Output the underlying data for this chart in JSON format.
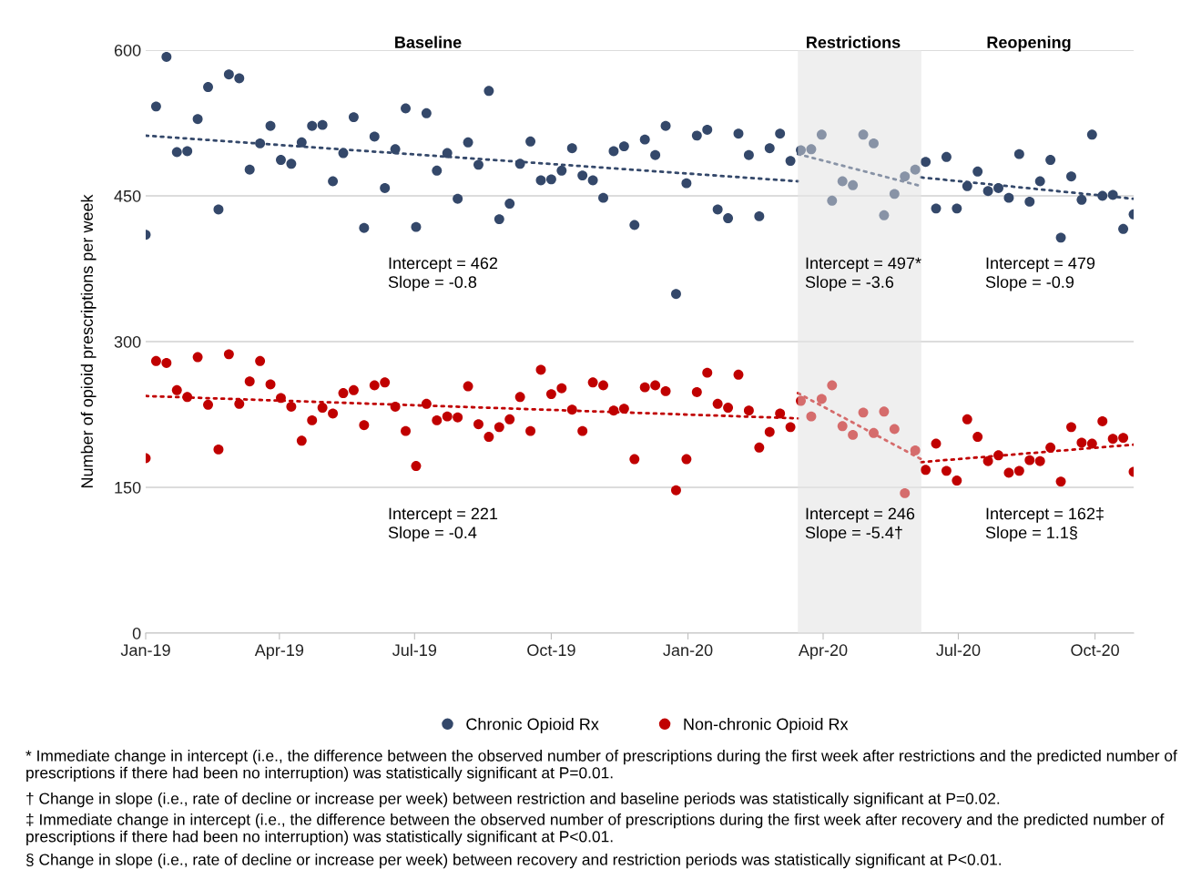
{
  "chart_data": {
    "type": "scatter",
    "ylabel": "Number of opioid prescriptions per week",
    "x": [
      "2019-01-01",
      "2019-01-08",
      "2019-01-15",
      "2019-01-22",
      "2019-01-29",
      "2019-02-05",
      "2019-02-12",
      "2019-02-19",
      "2019-02-26",
      "2019-03-05",
      "2019-03-12",
      "2019-03-19",
      "2019-03-26",
      "2019-04-02",
      "2019-04-09",
      "2019-04-16",
      "2019-04-23",
      "2019-04-30",
      "2019-05-07",
      "2019-05-14",
      "2019-05-21",
      "2019-05-28",
      "2019-06-04",
      "2019-06-11",
      "2019-06-18",
      "2019-06-25",
      "2019-07-02",
      "2019-07-09",
      "2019-07-16",
      "2019-07-23",
      "2019-07-30",
      "2019-08-06",
      "2019-08-13",
      "2019-08-20",
      "2019-08-27",
      "2019-09-03",
      "2019-09-10",
      "2019-09-17",
      "2019-09-24",
      "2019-10-01",
      "2019-10-08",
      "2019-10-15",
      "2019-10-22",
      "2019-10-29",
      "2019-11-05",
      "2019-11-12",
      "2019-11-19",
      "2019-11-26",
      "2019-12-03",
      "2019-12-10",
      "2019-12-17",
      "2019-12-24",
      "2019-12-31",
      "2020-01-07",
      "2020-01-14",
      "2020-01-21",
      "2020-01-28",
      "2020-02-04",
      "2020-02-11",
      "2020-02-18",
      "2020-02-25",
      "2020-03-03",
      "2020-03-10",
      "2020-03-17",
      "2020-03-24",
      "2020-03-31",
      "2020-04-07",
      "2020-04-14",
      "2020-04-21",
      "2020-04-28",
      "2020-05-05",
      "2020-05-12",
      "2020-05-19",
      "2020-05-26",
      "2020-06-02",
      "2020-06-09",
      "2020-06-16",
      "2020-06-23",
      "2020-06-30",
      "2020-07-07",
      "2020-07-14",
      "2020-07-21",
      "2020-07-28",
      "2020-08-04",
      "2020-08-11",
      "2020-08-18",
      "2020-08-25",
      "2020-09-01",
      "2020-09-08",
      "2020-09-15",
      "2020-09-22",
      "2020-09-29",
      "2020-10-06",
      "2020-10-13",
      "2020-10-20",
      "2020-10-27"
    ],
    "series": [
      {
        "name": "Chronic Opioid Rx",
        "color": "#34486a",
        "values": [
          410,
          542,
          593,
          495,
          496,
          529,
          562,
          436,
          575,
          571,
          477,
          504,
          522,
          487,
          483,
          505,
          522,
          523,
          465,
          494,
          531,
          417,
          511,
          458,
          498,
          540,
          418,
          535,
          476,
          494,
          447,
          505,
          482,
          558,
          426,
          442,
          483,
          506,
          466,
          467,
          476,
          499,
          471,
          466,
          448,
          496,
          501,
          420,
          508,
          492,
          522,
          349,
          463,
          512,
          518,
          436,
          427,
          514,
          492,
          429,
          499,
          514,
          486,
          497,
          498,
          513,
          445,
          465,
          461,
          513,
          504,
          430,
          452,
          470,
          477,
          485,
          437,
          490,
          437,
          460,
          475,
          455,
          458,
          448,
          493,
          444,
          465,
          487,
          407,
          470,
          446,
          513,
          450,
          451,
          416,
          431
        ]
      },
      {
        "name": "Non-chronic Opioid Rx",
        "color": "#c00000",
        "values": [
          180,
          280,
          278,
          250,
          243,
          284,
          235,
          189,
          287,
          236,
          259,
          280,
          256,
          242,
          233,
          198,
          219,
          232,
          226,
          247,
          250,
          214,
          255,
          258,
          233,
          208,
          172,
          236,
          219,
          223,
          222,
          254,
          215,
          202,
          212,
          220,
          243,
          208,
          271,
          246,
          252,
          230,
          208,
          258,
          255,
          229,
          231,
          179,
          253,
          255,
          249,
          147,
          179,
          248,
          268,
          236,
          232,
          266,
          229,
          191,
          207,
          226,
          212,
          239,
          223,
          241,
          255,
          213,
          204,
          227,
          206,
          228,
          210,
          144,
          188,
          168,
          195,
          167,
          157,
          220,
          202,
          177,
          183,
          165,
          167,
          178,
          177,
          191,
          156,
          212,
          196,
          195,
          218,
          200,
          201,
          166
        ]
      },
      {
        "type": "line",
        "color": "#34486a",
        "line_style": "dotted",
        "marker": "none",
        "x": [
          "2019-01-01",
          "2020-03-15"
        ],
        "values": [
          512,
          465
        ]
      },
      {
        "type": "line",
        "color": "#34486a",
        "line_style": "dotted",
        "marker": "none",
        "x": [
          "2020-03-15",
          "2020-06-06"
        ],
        "values": [
          493,
          460
        ]
      },
      {
        "type": "line",
        "color": "#34486a",
        "line_style": "dotted",
        "marker": "none",
        "x": [
          "2020-06-06",
          "2020-10-27"
        ],
        "values": [
          469,
          447
        ]
      },
      {
        "type": "line",
        "color": "#c00000",
        "line_style": "dotted",
        "marker": "none",
        "x": [
          "2019-01-01",
          "2020-03-15"
        ],
        "values": [
          244,
          221
        ]
      },
      {
        "type": "line",
        "color": "#c00000",
        "line_style": "dotted",
        "marker": "none",
        "x": [
          "2020-03-15",
          "2020-06-06"
        ],
        "values": [
          247,
          179
        ]
      },
      {
        "type": "line",
        "color": "#c00000",
        "line_style": "dotted",
        "marker": "none",
        "x": [
          "2020-06-06",
          "2020-10-27"
        ],
        "values": [
          176,
          194
        ]
      }
    ],
    "marker": "circle",
    "xlim": [
      "2019-01-01",
      "2020-10-27"
    ],
    "xticks": [
      {
        "value": "2019-01-01",
        "label": "Jan-19"
      },
      {
        "value": "2019-04-01",
        "label": "Apr-19"
      },
      {
        "value": "2019-07-01",
        "label": "Jul-19"
      },
      {
        "value": "2019-10-01",
        "label": "Oct-19"
      },
      {
        "value": "2020-01-01",
        "label": "Jan-20"
      },
      {
        "value": "2020-04-01",
        "label": "Apr-20"
      },
      {
        "value": "2020-07-01",
        "label": "Jul-20"
      },
      {
        "value": "2020-10-01",
        "label": "Oct-20"
      }
    ],
    "ylim": [
      0,
      600
    ],
    "yticks": [
      0,
      150,
      300,
      450,
      600
    ],
    "grid": "y",
    "legend": "bottom",
    "bands": [
      {
        "axis": "x",
        "from": "2020-03-15",
        "to": "2020-06-06",
        "color": "#efefef"
      }
    ],
    "annotations": [
      "Baseline",
      "Restrictions",
      "Reopening",
      "Intercept = 462\nSlope = -0.8",
      "Intercept = 497*\nSlope = -3.6",
      "Intercept = 479\nSlope = -0.9",
      "Intercept = 221\nSlope = -0.4",
      "Intercept = 246\nSlope = -5.4†",
      "Intercept = 162‡\nSlope = 1.1§",
      "* Immediate change in intercept (i.e., the difference between the observed number of prescriptions during the first week after restrictions and the predicted number of prescriptions if there had been no interruption) was statistically significant at P=0.01.",
      "† Change in slope (i.e., rate of decline or increase per week) between restriction and baseline periods was statistically significant at P=0.02.",
      "‡ Immediate change in intercept (i.e., the difference between the observed number of prescriptions during the first week after recovery and the predicted number of prescriptions if there had been no interruption) was statistically significant at P<0.01.",
      "§ Change in slope (i.e., rate of decline or increase per week) between recovery and restriction periods was statistically significant at P<0.01."
    ]
  }
}
